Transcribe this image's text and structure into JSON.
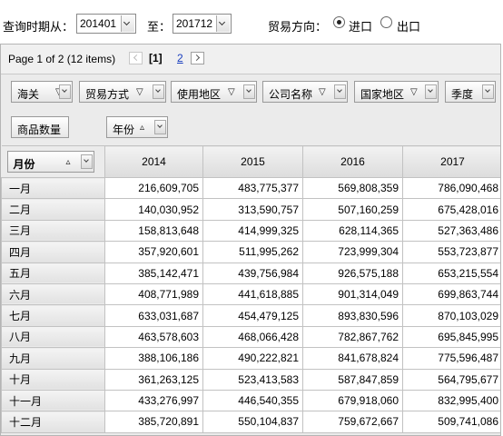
{
  "filters": {
    "period_label": "查询时期从：",
    "from_value": "201401",
    "to_label": "至：",
    "to_value": "201712",
    "direction_label": "贸易方向：",
    "direction_options": [
      {
        "label": "进口",
        "selected": true
      },
      {
        "label": "出口",
        "selected": false
      }
    ]
  },
  "pager": {
    "info": "Page 1 of 2 (12 items)",
    "current_page": "[1]",
    "next_page": "2"
  },
  "field_buttons": [
    {
      "label": "海关"
    },
    {
      "label": "贸易方式"
    },
    {
      "label": "使用地区"
    },
    {
      "label": "公司名称"
    },
    {
      "label": "国家地区"
    },
    {
      "label": "季度"
    }
  ],
  "data_field": "商品数量",
  "column_field": {
    "label": "年份",
    "sort": "▵"
  },
  "row_field": {
    "label": "月份",
    "sort": "▵"
  },
  "years": [
    "2014",
    "2015",
    "2016",
    "2017"
  ],
  "rows": [
    {
      "month": "一月",
      "values": [
        "216,609,705",
        "483,775,377",
        "569,808,359",
        "786,090,468"
      ]
    },
    {
      "month": "二月",
      "values": [
        "140,030,952",
        "313,590,757",
        "507,160,259",
        "675,428,016"
      ]
    },
    {
      "month": "三月",
      "values": [
        "158,813,648",
        "414,999,325",
        "628,114,365",
        "527,363,486"
      ]
    },
    {
      "month": "四月",
      "values": [
        "357,920,601",
        "511,995,262",
        "723,999,304",
        "553,723,877"
      ]
    },
    {
      "month": "五月",
      "values": [
        "385,142,471",
        "439,756,984",
        "926,575,188",
        "653,215,554"
      ]
    },
    {
      "month": "六月",
      "values": [
        "408,771,989",
        "441,618,885",
        "901,314,049",
        "699,863,744"
      ]
    },
    {
      "month": "七月",
      "values": [
        "633,031,687",
        "454,479,125",
        "893,830,596",
        "870,103,029"
      ]
    },
    {
      "month": "八月",
      "values": [
        "463,578,603",
        "468,066,428",
        "782,867,762",
        "695,845,995"
      ]
    },
    {
      "month": "九月",
      "values": [
        "388,106,186",
        "490,222,821",
        "841,678,824",
        "775,596,487"
      ]
    },
    {
      "month": "十月",
      "values": [
        "361,263,125",
        "523,413,583",
        "587,847,859",
        "564,795,677"
      ]
    },
    {
      "month": "十一月",
      "values": [
        "433,276,997",
        "446,540,355",
        "679,918,060",
        "832,995,400"
      ]
    },
    {
      "month": "十二月",
      "values": [
        "385,720,891",
        "550,104,837",
        "759,672,667",
        "509,741,086"
      ]
    }
  ]
}
